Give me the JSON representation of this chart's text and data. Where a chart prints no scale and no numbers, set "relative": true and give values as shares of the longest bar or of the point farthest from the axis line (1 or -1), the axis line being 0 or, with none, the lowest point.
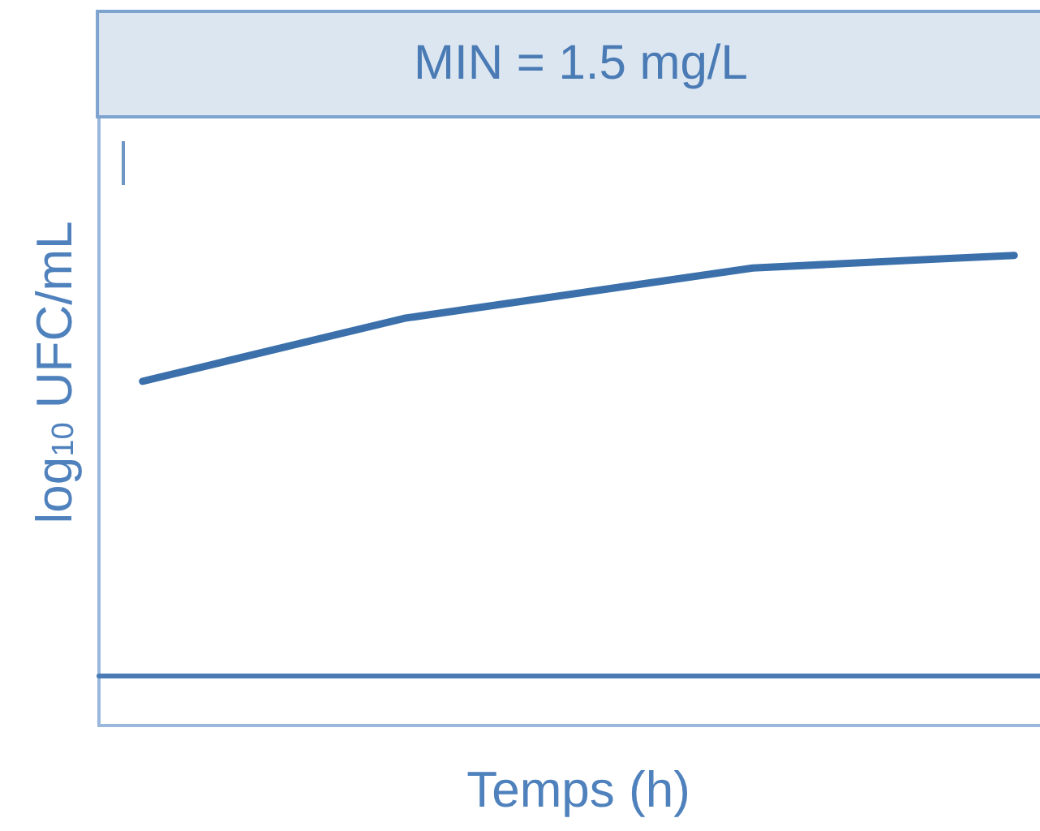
{
  "chart_data": {
    "type": "line",
    "title": "MIN = 1.5 mg/L",
    "xlabel": "Temps (h)",
    "ylabel": "log$_{10}$ UFC/mL",
    "categories": [
      null,
      null,
      null,
      null,
      null,
      null,
      null,
      null,
      null,
      null,
      null
    ],
    "series": [
      {
        "color": "#3b70ab",
        "values": [
          0.7,
          0.75,
          0.8,
          0.85,
          0.88,
          0.91,
          0.94,
          0.97,
          0.98,
          0.99,
          1.0
        ]
      }
    ],
    "relative": true,
    "marker": "none",
    "line_style": "solid"
  }
}
